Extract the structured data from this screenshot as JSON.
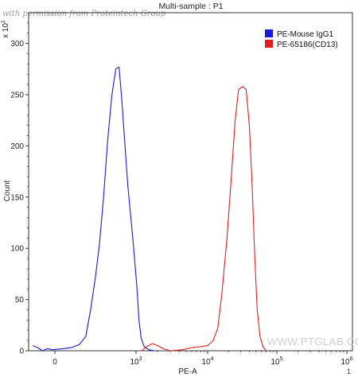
{
  "watermark": "with permission from Proteintech Group",
  "watermark_bottom": "WWW.PTGLAB.COM",
  "corner_mark": "1",
  "chart_data": {
    "type": "area",
    "title": "Multi-sample : P1",
    "xlabel": "PE-A",
    "ylabel": "Count",
    "y_multiplier_label": "x 10",
    "x_scale": "biexponential",
    "xlim": [
      -1000,
      1000000
    ],
    "ylim": [
      0,
      330
    ],
    "x_ticks": [
      {
        "value": 0,
        "base": "0",
        "exp": ""
      },
      {
        "value": 1000,
        "base": "10",
        "exp": "3"
      },
      {
        "value": 10000,
        "base": "10",
        "exp": "4"
      },
      {
        "value": 100000,
        "base": "10",
        "exp": "5"
      },
      {
        "value": 1000000,
        "base": "10",
        "exp": "6"
      }
    ],
    "y_ticks": [
      0,
      50,
      100,
      150,
      200,
      250,
      300
    ],
    "grid": false,
    "legend_position": "top-right",
    "series": [
      {
        "name": "PE-Mouse IgG1",
        "color": "#1a1adc",
        "points": [
          [
            -900,
            5
          ],
          [
            -700,
            3
          ],
          [
            -500,
            0
          ],
          [
            -300,
            2
          ],
          [
            -100,
            1
          ],
          [
            100,
            2
          ],
          [
            200,
            3
          ],
          [
            300,
            6
          ],
          [
            380,
            14
          ],
          [
            440,
            40
          ],
          [
            500,
            72
          ],
          [
            550,
            105
          ],
          [
            600,
            150
          ],
          [
            650,
            205
          ],
          [
            700,
            248
          ],
          [
            750,
            275
          ],
          [
            790,
            277
          ],
          [
            820,
            250
          ],
          [
            860,
            205
          ],
          [
            900,
            160
          ],
          [
            960,
            110
          ],
          [
            1020,
            65
          ],
          [
            1100,
            30
          ],
          [
            1180,
            12
          ],
          [
            1300,
            4
          ],
          [
            1500,
            1
          ],
          [
            1800,
            0
          ]
        ]
      },
      {
        "name": "PE-65186(CD13)",
        "color": "#e02020",
        "points": [
          [
            1200,
            0
          ],
          [
            1400,
            4
          ],
          [
            1700,
            7
          ],
          [
            2000,
            5
          ],
          [
            2400,
            2
          ],
          [
            3000,
            0
          ],
          [
            4500,
            1
          ],
          [
            6000,
            3
          ],
          [
            8000,
            4
          ],
          [
            10000,
            5
          ],
          [
            12000,
            10
          ],
          [
            14000,
            22
          ],
          [
            16000,
            55
          ],
          [
            19000,
            110
          ],
          [
            22000,
            170
          ],
          [
            25000,
            225
          ],
          [
            28000,
            255
          ],
          [
            32000,
            258
          ],
          [
            36000,
            255
          ],
          [
            40000,
            220
          ],
          [
            44000,
            160
          ],
          [
            48000,
            90
          ],
          [
            52000,
            40
          ],
          [
            57000,
            14
          ],
          [
            63000,
            4
          ],
          [
            70000,
            0
          ]
        ]
      }
    ]
  }
}
